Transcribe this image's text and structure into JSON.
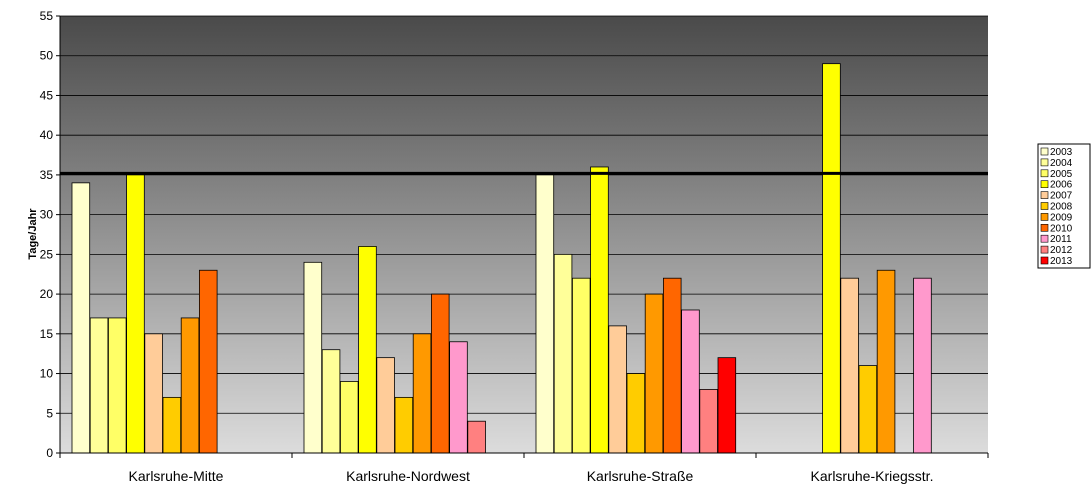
{
  "chart_data": {
    "type": "bar",
    "title": "",
    "xlabel": "",
    "ylabel": "Tage/Jahr",
    "ylim": [
      0,
      55
    ],
    "yticks": [
      0,
      5,
      10,
      15,
      20,
      25,
      30,
      35,
      40,
      45,
      50,
      55
    ],
    "categories": [
      "Karlsruhe-Mitte",
      "Karlsruhe-Nordwest",
      "Karlsruhe-Straße",
      "Karlsruhe-Kriegsstr."
    ],
    "grid": true,
    "legend_position": "right",
    "reference_line": 35,
    "series": [
      {
        "name": "2003",
        "color": "#FFFFCC",
        "values": [
          34,
          24,
          35,
          null
        ]
      },
      {
        "name": "2004",
        "color": "#FFFF99",
        "values": [
          17,
          13,
          25,
          null
        ]
      },
      {
        "name": "2005",
        "color": "#FFFF66",
        "values": [
          17,
          9,
          22,
          null
        ]
      },
      {
        "name": "2006",
        "color": "#FFFF00",
        "values": [
          35,
          26,
          36,
          49
        ]
      },
      {
        "name": "2007",
        "color": "#FFCC99",
        "values": [
          15,
          12,
          16,
          22
        ]
      },
      {
        "name": "2008",
        "color": "#FFCC00",
        "values": [
          7,
          7,
          10,
          11
        ]
      },
      {
        "name": "2009",
        "color": "#FF9900",
        "values": [
          17,
          15,
          20,
          23
        ]
      },
      {
        "name": "2010",
        "color": "#FF6600",
        "values": [
          23,
          20,
          22,
          null
        ]
      },
      {
        "name": "2011",
        "color": "#FF99CC",
        "values": [
          null,
          14,
          18,
          22
        ]
      },
      {
        "name": "2012",
        "color": "#FF8080",
        "values": [
          null,
          4,
          8,
          null
        ]
      },
      {
        "name": "2013",
        "color": "#FF0000",
        "values": [
          null,
          null,
          12,
          null
        ]
      }
    ]
  }
}
